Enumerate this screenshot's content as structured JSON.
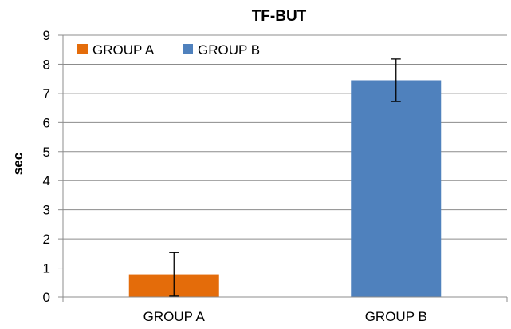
{
  "chart_data": {
    "type": "bar",
    "title": "TF-BUT",
    "xlabel": "",
    "ylabel": "sec",
    "categories": [
      "GROUP A",
      "GROUP B"
    ],
    "values": [
      0.78,
      7.45
    ],
    "error": [
      0.75,
      0.73
    ],
    "colors": [
      "#E46C0A",
      "#4F81BD"
    ],
    "ylim": [
      0,
      9
    ],
    "yticks": [
      "0",
      "1",
      "2",
      "3",
      "4",
      "5",
      "6",
      "7",
      "8",
      "9"
    ],
    "grid": true,
    "legend": {
      "placement": "top-left",
      "entries": [
        {
          "label": "GROUP A",
          "color": "#E46C0A"
        },
        {
          "label": "GROUP B",
          "color": "#4F81BD"
        }
      ]
    }
  }
}
